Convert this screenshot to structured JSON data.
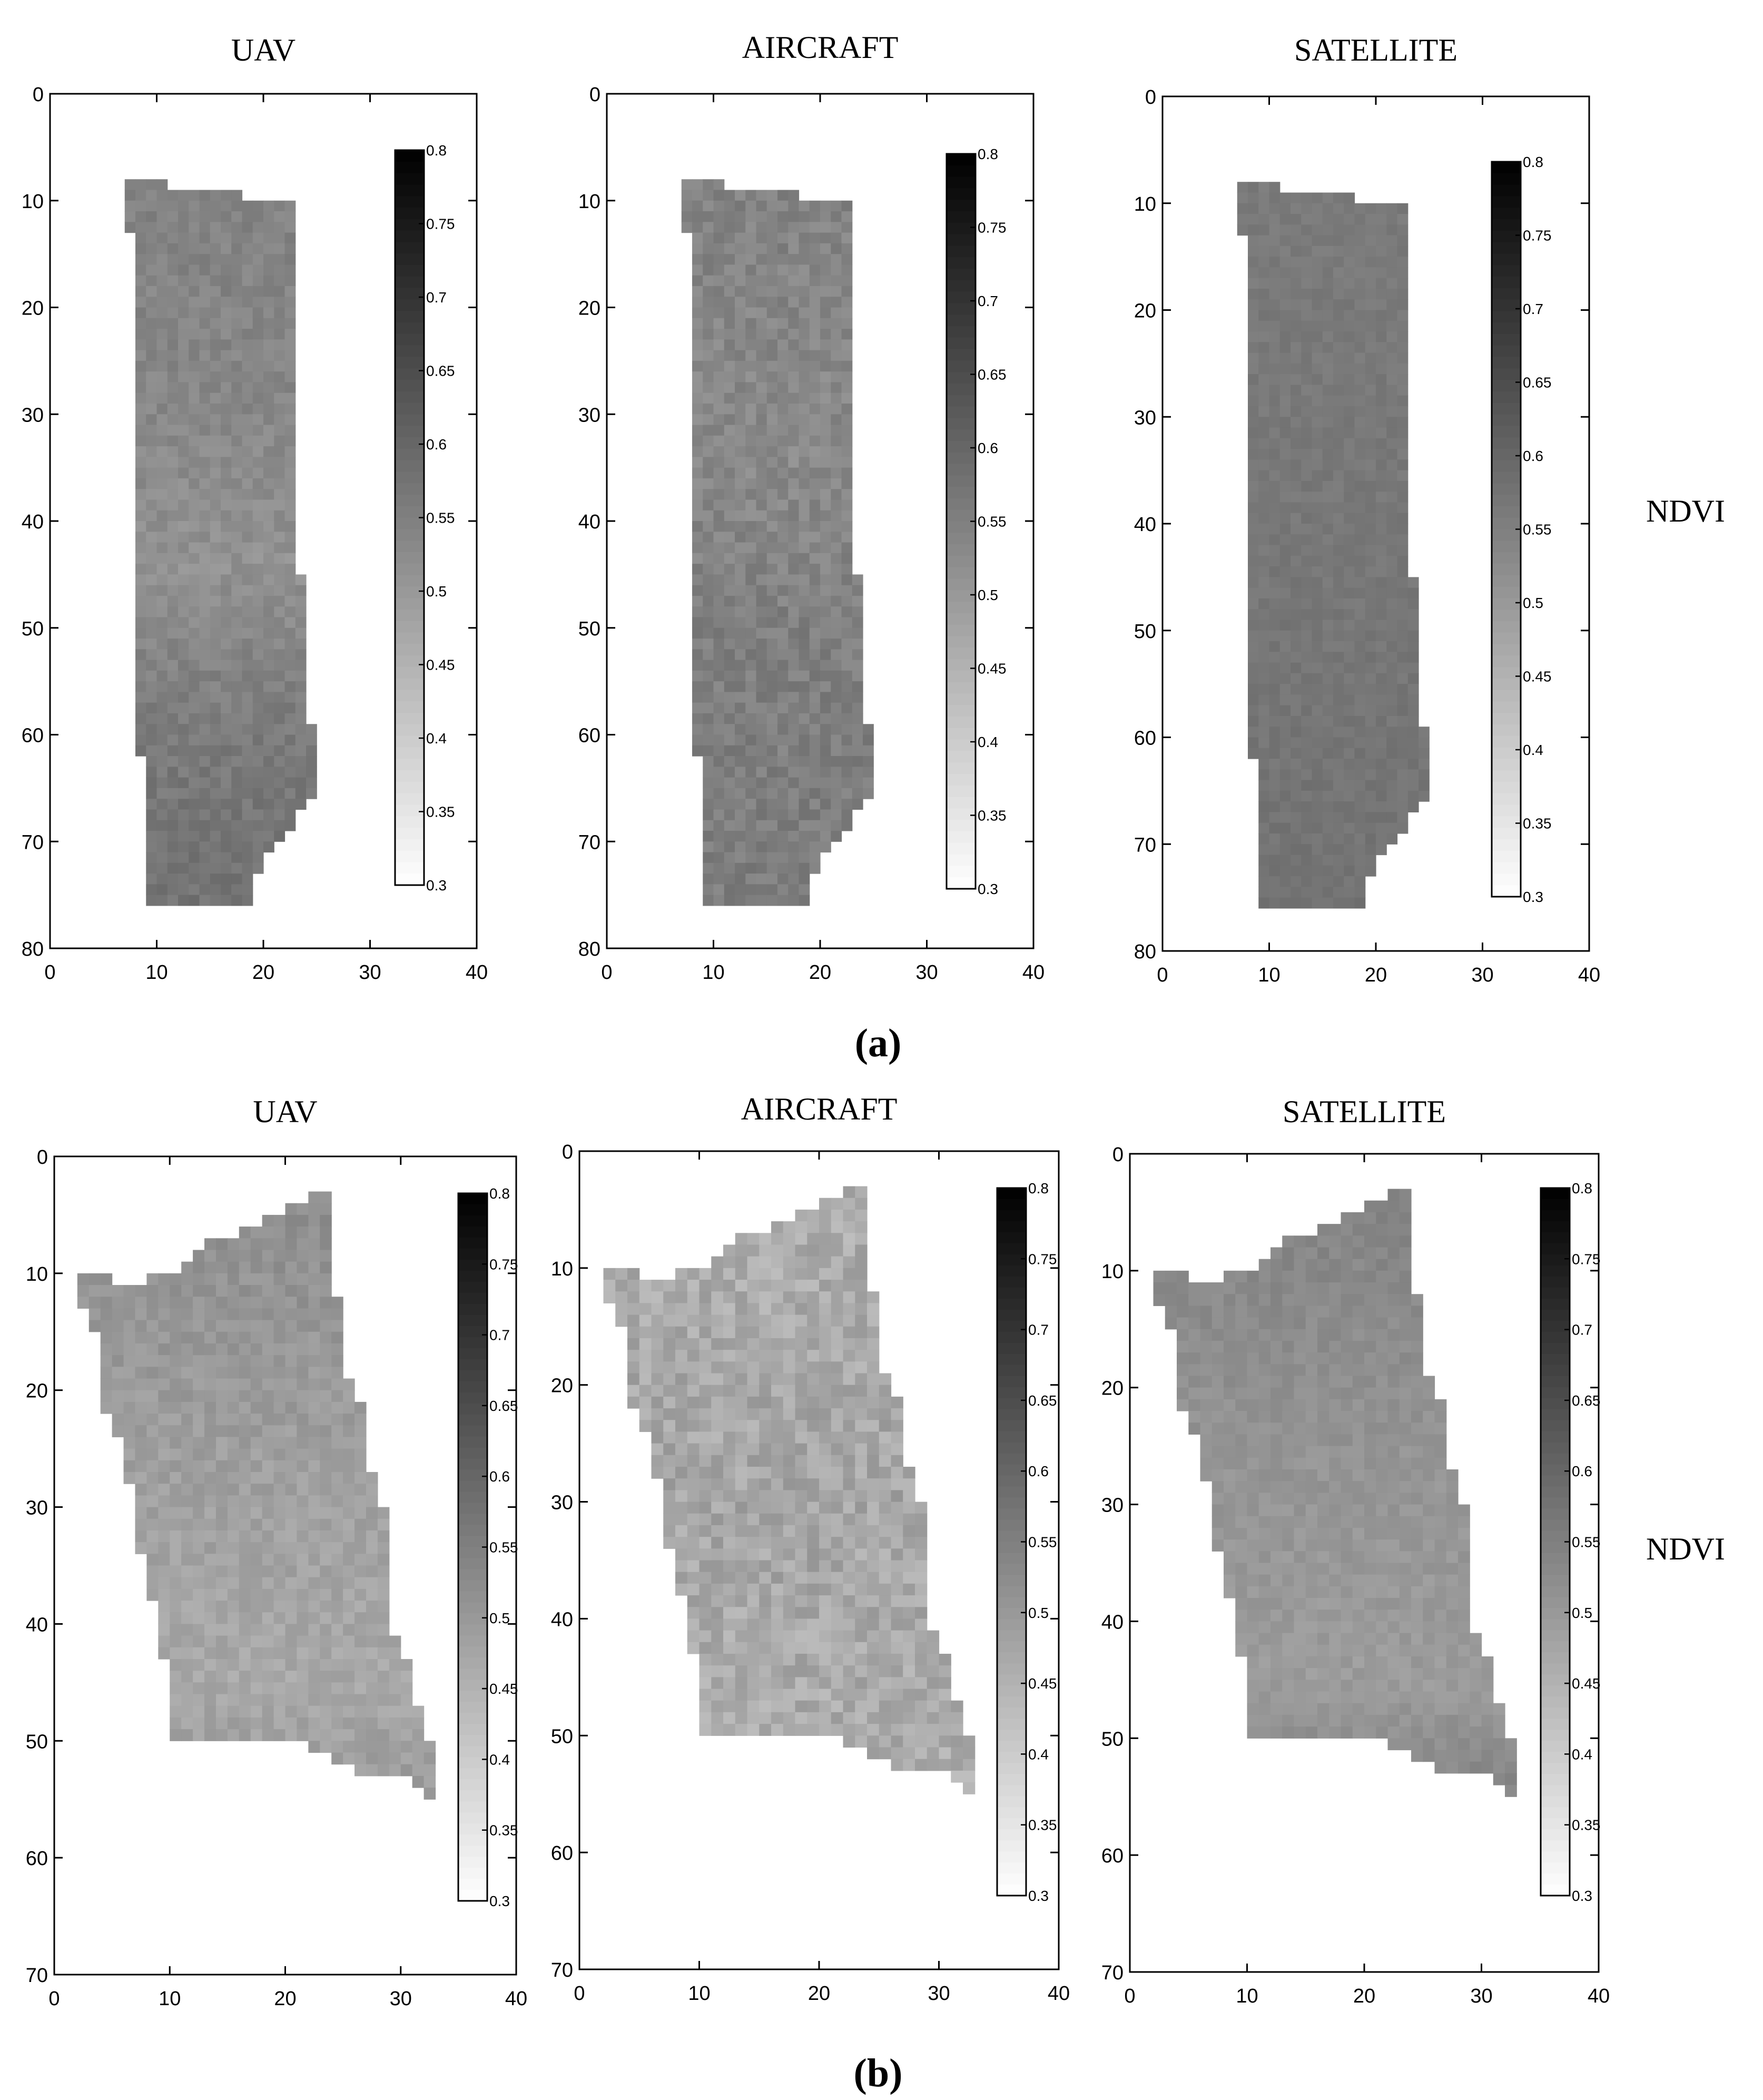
{
  "figure": {
    "side_label": "NDVI",
    "colorbar": {
      "min": 0.3,
      "max": 0.8,
      "ticks": [
        "0.8",
        "0.75",
        "0.7",
        "0.65",
        "0.6",
        "0.55",
        "0.5",
        "0.45",
        "0.4",
        "0.35",
        "0.3"
      ]
    }
  },
  "chart_data": [
    {
      "type": "heatmap",
      "panel": "a",
      "caption": "(a)",
      "title": "UAV",
      "seed": 11,
      "xlim": [
        0,
        40
      ],
      "ylim": [
        0,
        80
      ],
      "y_inverted": true,
      "xticks": [
        "0",
        "10",
        "20",
        "30",
        "40"
      ],
      "yticks": [
        "0",
        "10",
        "20",
        "30",
        "40",
        "50",
        "60",
        "70",
        "80"
      ],
      "outline": [
        [
          7,
          8.5
        ],
        [
          11,
          8.5
        ],
        [
          11,
          9.5
        ],
        [
          18,
          9.5
        ],
        [
          18,
          10.5
        ],
        [
          23,
          10.5
        ],
        [
          23,
          45.5
        ],
        [
          24,
          45.5
        ],
        [
          24,
          59.5
        ],
        [
          25.5,
          59.5
        ],
        [
          25.5,
          66
        ],
        [
          24,
          66
        ],
        [
          22,
          69.5
        ],
        [
          20.5,
          71
        ],
        [
          19,
          73.5
        ],
        [
          18.5,
          76.5
        ],
        [
          9.5,
          76.5
        ],
        [
          9.5,
          62.5
        ],
        [
          8.5,
          62.5
        ],
        [
          8.5,
          38.5
        ],
        [
          8,
          38.5
        ],
        [
          8,
          13.5
        ],
        [
          7,
          13.5
        ]
      ],
      "ndvi_profile": [
        [
          8,
          0.545
        ],
        [
          30,
          0.535
        ],
        [
          44,
          0.515
        ],
        [
          60,
          0.56
        ],
        [
          76,
          0.575
        ]
      ],
      "variation": 0.02
    },
    {
      "type": "heatmap",
      "panel": "a",
      "caption": "(a)",
      "title": "AIRCRAFT",
      "seed": 23,
      "xlim": [
        0,
        40
      ],
      "ylim": [
        0,
        80
      ],
      "y_inverted": true,
      "xticks": [
        "0",
        "10",
        "20",
        "30",
        "40"
      ],
      "yticks": [
        "0",
        "10",
        "20",
        "30",
        "40",
        "50",
        "60",
        "70",
        "80"
      ],
      "outline": [
        [
          7,
          8.5
        ],
        [
          11,
          8.5
        ],
        [
          11,
          9.5
        ],
        [
          18,
          9.5
        ],
        [
          18,
          10.5
        ],
        [
          23,
          10.5
        ],
        [
          23,
          45.5
        ],
        [
          24,
          45.5
        ],
        [
          24,
          59.5
        ],
        [
          25.5,
          59.5
        ],
        [
          25.5,
          66
        ],
        [
          24,
          66
        ],
        [
          22,
          69.5
        ],
        [
          20.5,
          71
        ],
        [
          19,
          73.5
        ],
        [
          18.5,
          76.5
        ],
        [
          9.5,
          76.5
        ],
        [
          9.5,
          62.5
        ],
        [
          8.5,
          62.5
        ],
        [
          8.5,
          38.5
        ],
        [
          8,
          38.5
        ],
        [
          8,
          13.5
        ],
        [
          7,
          13.5
        ]
      ],
      "ndvi_profile": [
        [
          8,
          0.545
        ],
        [
          35,
          0.53
        ],
        [
          50,
          0.55
        ],
        [
          76,
          0.555
        ]
      ],
      "variation": 0.025
    },
    {
      "type": "heatmap",
      "panel": "a",
      "caption": "(a)",
      "title": "SATELLITE",
      "seed": 37,
      "xlim": [
        0,
        40
      ],
      "ylim": [
        0,
        80
      ],
      "y_inverted": true,
      "xticks": [
        "0",
        "10",
        "20",
        "30",
        "40"
      ],
      "yticks": [
        "0",
        "10",
        "20",
        "30",
        "40",
        "50",
        "60",
        "70",
        "80"
      ],
      "outline": [
        [
          7,
          8.5
        ],
        [
          11,
          8.5
        ],
        [
          11,
          9.5
        ],
        [
          18,
          9.5
        ],
        [
          18,
          10.5
        ],
        [
          23,
          10.5
        ],
        [
          23,
          45.5
        ],
        [
          24,
          45.5
        ],
        [
          24,
          59.5
        ],
        [
          25.5,
          59.5
        ],
        [
          25.5,
          66
        ],
        [
          24,
          66
        ],
        [
          22,
          69.5
        ],
        [
          20.5,
          71
        ],
        [
          19,
          73.5
        ],
        [
          18.5,
          76.5
        ],
        [
          9.5,
          76.5
        ],
        [
          9.5,
          62.5
        ],
        [
          8.5,
          62.5
        ],
        [
          8.5,
          38.5
        ],
        [
          8,
          38.5
        ],
        [
          8,
          13.5
        ],
        [
          7,
          13.5
        ]
      ],
      "ndvi_profile": [
        [
          8,
          0.56
        ],
        [
          40,
          0.565
        ],
        [
          76,
          0.575
        ]
      ],
      "variation": 0.012
    },
    {
      "type": "heatmap",
      "panel": "b",
      "caption": "(b)",
      "title": "UAV",
      "seed": 51,
      "xlim": [
        0,
        40
      ],
      "ylim": [
        0,
        70
      ],
      "y_inverted": true,
      "xticks": [
        "0",
        "10",
        "20",
        "30",
        "40"
      ],
      "yticks": [
        "0",
        "10",
        "20",
        "30",
        "40",
        "50",
        "60",
        "70"
      ],
      "outline": [
        [
          2.5,
          10.5
        ],
        [
          5,
          10.5
        ],
        [
          5,
          11
        ],
        [
          8,
          11
        ],
        [
          8,
          10.5
        ],
        [
          11,
          9.5
        ],
        [
          13,
          7.5
        ],
        [
          16,
          6.5
        ],
        [
          18,
          5.5
        ],
        [
          20,
          4.5
        ],
        [
          22,
          3.5
        ],
        [
          23,
          2.5
        ],
        [
          23.5,
          2.5
        ],
        [
          24,
          6
        ],
        [
          24.5,
          9
        ],
        [
          24.5,
          12
        ],
        [
          25.5,
          14.5
        ],
        [
          25.5,
          18.5
        ],
        [
          27,
          21.5
        ],
        [
          27,
          26
        ],
        [
          28,
          28
        ],
        [
          29,
          32
        ],
        [
          29.5,
          36
        ],
        [
          29.5,
          40.5
        ],
        [
          30.5,
          43
        ],
        [
          31,
          46
        ],
        [
          32,
          47.5
        ],
        [
          32,
          50.5
        ],
        [
          33.5,
          50.5
        ],
        [
          33.5,
          55.5
        ],
        [
          32.5,
          55.5
        ],
        [
          31,
          53.5
        ],
        [
          29,
          53.5
        ],
        [
          27,
          53
        ],
        [
          25.5,
          52
        ],
        [
          24,
          51.5
        ],
        [
          22,
          50.5
        ],
        [
          20,
          50.5
        ],
        [
          11,
          50.5
        ],
        [
          10,
          50.5
        ],
        [
          10,
          47
        ],
        [
          9.5,
          43
        ],
        [
          9,
          40
        ],
        [
          8,
          36
        ],
        [
          7,
          32
        ],
        [
          6.5,
          28
        ],
        [
          6,
          25
        ],
        [
          5,
          23
        ],
        [
          4,
          20
        ],
        [
          4,
          18.5
        ],
        [
          3.5,
          15
        ],
        [
          3,
          13
        ],
        [
          2.5,
          13
        ]
      ],
      "ndvi_profile": [
        [
          2,
          0.525
        ],
        [
          25,
          0.49
        ],
        [
          45,
          0.47
        ],
        [
          56,
          0.5
        ]
      ],
      "variation": 0.02
    },
    {
      "type": "heatmap",
      "panel": "b",
      "caption": "(b)",
      "title": "AIRCRAFT",
      "seed": 67,
      "xlim": [
        0,
        40
      ],
      "ylim": [
        0,
        70
      ],
      "y_inverted": true,
      "xticks": [
        "0",
        "10",
        "20",
        "30",
        "40"
      ],
      "yticks": [
        "0",
        "10",
        "20",
        "30",
        "40",
        "50",
        "60",
        "70"
      ],
      "outline": [
        [
          2.5,
          10.5
        ],
        [
          5,
          10.5
        ],
        [
          5,
          11
        ],
        [
          8,
          11
        ],
        [
          8,
          10.5
        ],
        [
          11,
          9.5
        ],
        [
          13,
          7.5
        ],
        [
          16,
          6.5
        ],
        [
          18,
          5.5
        ],
        [
          20,
          4.5
        ],
        [
          22,
          3.5
        ],
        [
          23,
          2.5
        ],
        [
          23.5,
          2.5
        ],
        [
          24,
          6
        ],
        [
          24.5,
          9
        ],
        [
          24.5,
          12
        ],
        [
          25.5,
          14.5
        ],
        [
          25.5,
          18.5
        ],
        [
          27,
          21.5
        ],
        [
          27,
          26
        ],
        [
          28,
          28
        ],
        [
          29,
          32
        ],
        [
          29.5,
          36
        ],
        [
          29.5,
          40.5
        ],
        [
          30.5,
          43
        ],
        [
          31,
          46
        ],
        [
          32,
          47.5
        ],
        [
          32,
          50.5
        ],
        [
          33.5,
          50.5
        ],
        [
          33.5,
          55.5
        ],
        [
          32.5,
          55.5
        ],
        [
          31,
          53.5
        ],
        [
          29,
          53.5
        ],
        [
          27,
          53
        ],
        [
          25.5,
          52
        ],
        [
          24,
          51.5
        ],
        [
          22,
          50.5
        ],
        [
          20,
          50.5
        ],
        [
          11,
          50.5
        ],
        [
          10,
          50.5
        ],
        [
          10,
          47
        ],
        [
          9.5,
          43
        ],
        [
          9,
          40
        ],
        [
          8,
          36
        ],
        [
          7,
          32
        ],
        [
          6.5,
          28
        ],
        [
          6,
          25
        ],
        [
          5,
          23
        ],
        [
          4,
          20
        ],
        [
          4,
          18.5
        ],
        [
          3.5,
          15
        ],
        [
          3,
          13
        ],
        [
          2.5,
          13
        ]
      ],
      "ndvi_profile": [
        [
          2,
          0.46
        ],
        [
          30,
          0.475
        ],
        [
          56,
          0.46
        ]
      ],
      "variation": 0.035
    },
    {
      "type": "heatmap",
      "panel": "b",
      "caption": "(b)",
      "title": "SATELLITE",
      "seed": 83,
      "xlim": [
        0,
        40
      ],
      "ylim": [
        0,
        70
      ],
      "y_inverted": true,
      "xticks": [
        "0",
        "10",
        "20",
        "30",
        "40"
      ],
      "yticks": [
        "0",
        "10",
        "20",
        "30",
        "40",
        "50",
        "60",
        "70"
      ],
      "outline": [
        [
          2.5,
          10.5
        ],
        [
          5,
          10.5
        ],
        [
          5,
          11
        ],
        [
          8,
          11
        ],
        [
          8,
          10.5
        ],
        [
          11,
          9.5
        ],
        [
          13,
          7.5
        ],
        [
          16,
          6.5
        ],
        [
          18,
          5.5
        ],
        [
          20,
          4.5
        ],
        [
          22,
          3.5
        ],
        [
          23,
          2.5
        ],
        [
          23.5,
          2.5
        ],
        [
          24,
          6
        ],
        [
          24.5,
          9
        ],
        [
          24.5,
          12
        ],
        [
          25.5,
          14.5
        ],
        [
          25.5,
          18.5
        ],
        [
          27,
          21.5
        ],
        [
          27,
          26
        ],
        [
          28,
          28
        ],
        [
          29,
          32
        ],
        [
          29.5,
          36
        ],
        [
          29.5,
          40.5
        ],
        [
          30.5,
          43
        ],
        [
          31,
          46
        ],
        [
          32,
          47.5
        ],
        [
          32,
          50.5
        ],
        [
          33.5,
          50.5
        ],
        [
          33.5,
          55.5
        ],
        [
          32.5,
          55.5
        ],
        [
          31,
          53.5
        ],
        [
          29,
          53.5
        ],
        [
          27,
          53
        ],
        [
          25.5,
          52
        ],
        [
          24,
          51.5
        ],
        [
          22,
          50.5
        ],
        [
          20,
          50.5
        ],
        [
          11,
          50.5
        ],
        [
          10,
          50.5
        ],
        [
          10,
          47
        ],
        [
          9.5,
          43
        ],
        [
          9,
          40
        ],
        [
          8,
          36
        ],
        [
          7,
          32
        ],
        [
          6.5,
          28
        ],
        [
          6,
          25
        ],
        [
          5,
          23
        ],
        [
          4,
          20
        ],
        [
          4,
          18.5
        ],
        [
          3.5,
          15
        ],
        [
          3,
          13
        ],
        [
          2.5,
          13
        ]
      ],
      "ndvi_profile": [
        [
          2,
          0.545
        ],
        [
          25,
          0.51
        ],
        [
          45,
          0.495
        ],
        [
          56,
          0.545
        ]
      ],
      "variation": 0.015
    }
  ]
}
